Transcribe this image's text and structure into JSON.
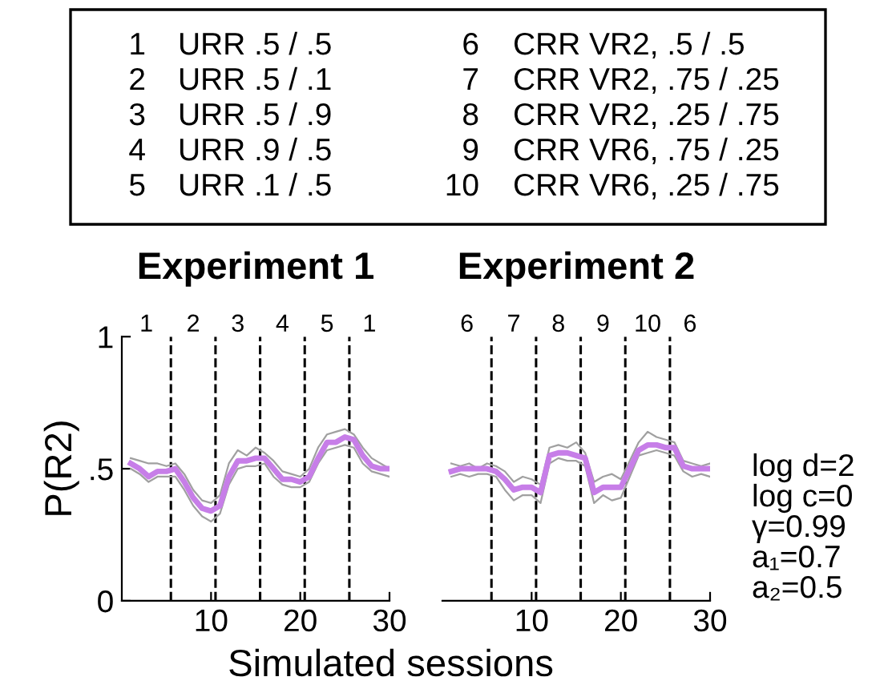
{
  "chart_data": [
    {
      "type": "line",
      "title": "Experiment 1",
      "xlabel": "Simulated sessions",
      "ylabel": "P(R2)",
      "x": [
        1,
        2,
        3,
        4,
        5,
        6,
        7,
        8,
        9,
        10,
        11,
        12,
        13,
        14,
        15,
        16,
        17,
        18,
        19,
        20,
        21,
        22,
        23,
        24,
        25,
        26,
        27,
        28,
        29,
        30
      ],
      "series": [
        {
          "color": "#a0a0a0",
          "values": [
            0.54,
            0.53,
            0.52,
            0.52,
            0.51,
            0.52,
            0.48,
            0.42,
            0.38,
            0.37,
            0.4,
            0.52,
            0.57,
            0.55,
            0.58,
            0.56,
            0.53,
            0.49,
            0.48,
            0.47,
            0.5,
            0.58,
            0.63,
            0.64,
            0.65,
            0.63,
            0.58,
            0.54,
            0.52,
            0.5
          ]
        },
        {
          "color": "#a0a0a0",
          "values": [
            0.5,
            0.48,
            0.45,
            0.47,
            0.47,
            0.47,
            0.42,
            0.36,
            0.32,
            0.3,
            0.33,
            0.44,
            0.5,
            0.51,
            0.51,
            0.52,
            0.47,
            0.44,
            0.43,
            0.43,
            0.45,
            0.52,
            0.57,
            0.58,
            0.59,
            0.58,
            0.52,
            0.49,
            0.48,
            0.47
          ]
        },
        {
          "color": "#c77ee8",
          "values": [
            0.52,
            0.5,
            0.47,
            0.49,
            0.49,
            0.5,
            0.45,
            0.39,
            0.35,
            0.34,
            0.36,
            0.47,
            0.53,
            0.53,
            0.54,
            0.54,
            0.5,
            0.46,
            0.46,
            0.45,
            0.47,
            0.54,
            0.6,
            0.6,
            0.62,
            0.61,
            0.55,
            0.51,
            0.5,
            0.5
          ]
        }
      ],
      "xlim": [
        0,
        30
      ],
      "xticks": [
        10,
        20,
        30
      ],
      "ylim": [
        0,
        1
      ],
      "yticks": [
        0,
        {
          "value": 0.5,
          "label": ".5"
        },
        1
      ],
      "ref_lines": [
        {
          "axis": "x",
          "value": 5.5,
          "line_style": "dashed",
          "color": "#000000"
        },
        {
          "axis": "x",
          "value": 10.5,
          "line_style": "dashed",
          "color": "#000000"
        },
        {
          "axis": "x",
          "value": 15.5,
          "line_style": "dashed",
          "color": "#000000"
        },
        {
          "axis": "x",
          "value": 20.5,
          "line_style": "dashed",
          "color": "#000000"
        },
        {
          "axis": "x",
          "value": 25.5,
          "line_style": "dashed",
          "color": "#000000"
        }
      ],
      "annotations": [
        "1",
        "URR .5 / .5",
        "2",
        "URR .5 / .1",
        "3",
        "URR .5 / .9",
        "4",
        "URR .9 / .5",
        "5",
        "URR .1 / .5",
        "6",
        "CRR VR2, .5 / .5",
        "7",
        "CRR VR2, .75 / .25",
        "8",
        "CRR VR2, .25 / .75",
        "9",
        "CRR VR6, .75 / .25",
        "10",
        "CRR VR6, .25 / .75",
        "1",
        "2",
        "3",
        "4",
        "5",
        "1"
      ],
      "line_style": "solid",
      "marker": "none",
      "grid": false,
      "legend": false
    },
    {
      "type": "line",
      "title": "Experiment 2",
      "x": [
        1,
        2,
        3,
        4,
        5,
        6,
        7,
        8,
        9,
        10,
        11,
        12,
        13,
        14,
        15,
        16,
        17,
        18,
        19,
        20,
        21,
        22,
        23,
        24,
        25,
        26,
        27,
        28,
        29,
        30
      ],
      "series": [
        {
          "color": "#a0a0a0",
          "values": [
            0.52,
            0.51,
            0.52,
            0.5,
            0.52,
            0.51,
            0.49,
            0.45,
            0.47,
            0.46,
            0.44,
            0.58,
            0.59,
            0.58,
            0.6,
            0.56,
            0.45,
            0.47,
            0.48,
            0.46,
            0.53,
            0.6,
            0.64,
            0.62,
            0.61,
            0.6,
            0.53,
            0.52,
            0.51,
            0.52
          ]
        },
        {
          "color": "#a0a0a0",
          "values": [
            0.47,
            0.48,
            0.47,
            0.48,
            0.48,
            0.47,
            0.42,
            0.38,
            0.4,
            0.4,
            0.37,
            0.52,
            0.54,
            0.53,
            0.53,
            0.51,
            0.37,
            0.4,
            0.38,
            0.39,
            0.47,
            0.55,
            0.56,
            0.57,
            0.56,
            0.55,
            0.49,
            0.47,
            0.48,
            0.47
          ]
        },
        {
          "color": "#c77ee8",
          "values": [
            0.49,
            0.5,
            0.5,
            0.5,
            0.5,
            0.49,
            0.46,
            0.42,
            0.43,
            0.43,
            0.41,
            0.55,
            0.56,
            0.56,
            0.55,
            0.54,
            0.41,
            0.43,
            0.43,
            0.43,
            0.5,
            0.57,
            0.59,
            0.59,
            0.58,
            0.58,
            0.51,
            0.5,
            0.5,
            0.5
          ]
        }
      ],
      "xlim": [
        0,
        30
      ],
      "xticks": [
        10,
        20,
        30
      ],
      "ylim": [
        0,
        1
      ],
      "tick_labels": "x",
      "ref_lines": [
        {
          "axis": "x",
          "value": 5.5,
          "line_style": "dashed",
          "color": "#000000"
        },
        {
          "axis": "x",
          "value": 10.5,
          "line_style": "dashed",
          "color": "#000000"
        },
        {
          "axis": "x",
          "value": 15.5,
          "line_style": "dashed",
          "color": "#000000"
        },
        {
          "axis": "x",
          "value": 20.5,
          "line_style": "dashed",
          "color": "#000000"
        },
        {
          "axis": "x",
          "value": 25.5,
          "line_style": "dashed",
          "color": "#000000"
        }
      ],
      "annotations": [
        "log d=2",
        "log c=0",
        "γ=0.99",
        "a₁=0.7",
        "a₂=0.5",
        "6",
        "7",
        "8",
        "9",
        "10",
        "6"
      ],
      "line_style": "solid",
      "marker": "none",
      "grid": false,
      "legend": false
    }
  ]
}
